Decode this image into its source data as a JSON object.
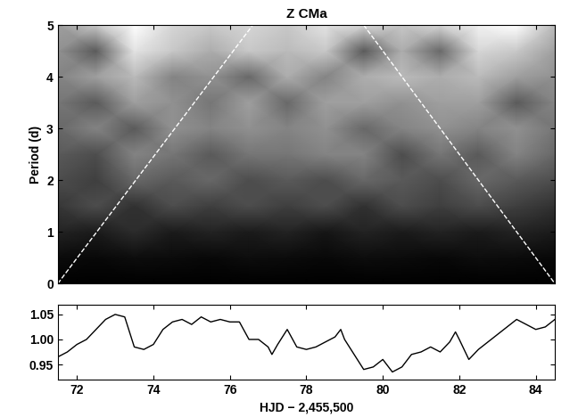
{
  "chart_data": [
    {
      "type": "heatmap",
      "title": "Z CMa",
      "y_label": "Period (d)",
      "tick_labels": "y",
      "xlim": [
        71.5,
        84.5
      ],
      "xticks": [
        72,
        74,
        76,
        78,
        80,
        82,
        84
      ],
      "ylim": [
        0,
        5
      ],
      "yticks": [
        0,
        1,
        2,
        3,
        4,
        5
      ],
      "x": [
        71.5,
        72.5,
        73.5,
        74.5,
        75.5,
        76.5,
        77.5,
        78.5,
        79.5,
        80.5,
        81.5,
        82.5,
        83.5,
        84.5
      ],
      "y": [
        0,
        0.5,
        1,
        1.5,
        2,
        2.5,
        3,
        3.5,
        4,
        4.5,
        5
      ],
      "cells": [
        [
          0.02,
          0.02,
          0.02,
          0.02,
          0.02,
          0.02,
          0.02,
          0.02,
          0.02,
          0.02,
          0.02,
          0.02,
          0.02,
          0.02
        ],
        [
          0.06,
          0.05,
          0.07,
          0.06,
          0.05,
          0.07,
          0.06,
          0.05,
          0.07,
          0.06,
          0.05,
          0.07,
          0.06,
          0.05
        ],
        [
          0.15,
          0.12,
          0.18,
          0.12,
          0.15,
          0.12,
          0.15,
          0.1,
          0.15,
          0.12,
          0.15,
          0.12,
          0.15,
          0.12
        ],
        [
          0.22,
          0.3,
          0.2,
          0.3,
          0.25,
          0.3,
          0.25,
          0.3,
          0.2,
          0.3,
          0.25,
          0.3,
          0.25,
          0.2
        ],
        [
          0.3,
          0.25,
          0.4,
          0.35,
          0.4,
          0.3,
          0.35,
          0.3,
          0.4,
          0.35,
          0.3,
          0.4,
          0.35,
          0.3
        ],
        [
          0.35,
          0.3,
          0.5,
          0.45,
          0.35,
          0.45,
          0.45,
          0.5,
          0.5,
          0.3,
          0.45,
          0.35,
          0.5,
          0.4
        ],
        [
          0.4,
          0.5,
          0.35,
          0.55,
          0.5,
          0.55,
          0.5,
          0.55,
          0.4,
          0.5,
          0.55,
          0.5,
          0.55,
          0.45
        ],
        [
          0.45,
          0.35,
          0.6,
          0.55,
          0.45,
          0.6,
          0.4,
          0.6,
          0.6,
          0.55,
          0.6,
          0.6,
          0.35,
          0.5
        ],
        [
          0.5,
          0.6,
          0.7,
          0.5,
          0.55,
          0.4,
          0.65,
          0.5,
          0.65,
          0.7,
          0.65,
          0.7,
          0.6,
          0.55
        ],
        [
          0.55,
          0.35,
          0.85,
          0.75,
          0.65,
          0.75,
          0.7,
          0.75,
          0.35,
          0.65,
          0.4,
          0.8,
          0.75,
          0.6
        ],
        [
          0.6,
          0.75,
          0.95,
          0.8,
          0.75,
          0.8,
          0.75,
          0.85,
          0.8,
          0.75,
          0.8,
          0.9,
          0.95,
          0.7
        ]
      ],
      "series": [
        {
          "x": [
            71.5,
            76.6
          ],
          "values": [
            0,
            5
          ],
          "color": "#ffffff",
          "line_style": "dashed"
        },
        {
          "x": [
            79.5,
            84.5
          ],
          "values": [
            5,
            0
          ],
          "color": "#ffffff",
          "line_style": "dashed"
        }
      ]
    },
    {
      "type": "line",
      "x_label": "HJD − 2,455,500",
      "xlim": [
        71.5,
        84.5
      ],
      "xticks": [
        72,
        74,
        76,
        78,
        80,
        82,
        84
      ],
      "ylim": [
        0.92,
        1.07
      ],
      "yticks": [
        0.95,
        {
          "value": 1.0,
          "label": "1.00"
        },
        1.05
      ],
      "color": "#000000",
      "x": [
        71.5,
        71.75,
        72.0,
        72.25,
        72.5,
        72.75,
        73.0,
        73.25,
        73.5,
        73.75,
        74.0,
        74.25,
        74.5,
        74.75,
        75.0,
        75.25,
        75.5,
        75.75,
        76.0,
        76.25,
        76.5,
        76.75,
        77.0,
        77.1,
        77.25,
        77.5,
        77.75,
        78.0,
        78.25,
        78.5,
        78.75,
        78.9,
        79.0,
        79.25,
        79.5,
        79.75,
        80.0,
        80.25,
        80.5,
        80.75,
        81.0,
        81.25,
        81.5,
        81.75,
        81.9,
        82.0,
        82.25,
        82.5,
        82.75,
        83.0,
        83.25,
        83.5,
        83.75,
        84.0,
        84.25,
        84.5
      ],
      "values": [
        0.965,
        0.975,
        0.99,
        1.0,
        1.02,
        1.04,
        1.05,
        1.045,
        0.985,
        0.98,
        0.99,
        1.02,
        1.035,
        1.04,
        1.03,
        1.045,
        1.035,
        1.04,
        1.035,
        1.035,
        1.0,
        1.0,
        0.985,
        0.97,
        0.99,
        1.02,
        0.985,
        0.98,
        0.985,
        0.995,
        1.005,
        1.02,
        1.0,
        0.97,
        0.94,
        0.945,
        0.96,
        0.935,
        0.945,
        0.97,
        0.975,
        0.985,
        0.975,
        0.995,
        1.015,
        1.0,
        0.96,
        0.98,
        0.995,
        1.01,
        1.025,
        1.04,
        1.03,
        1.02,
        1.025,
        1.04
      ]
    }
  ]
}
